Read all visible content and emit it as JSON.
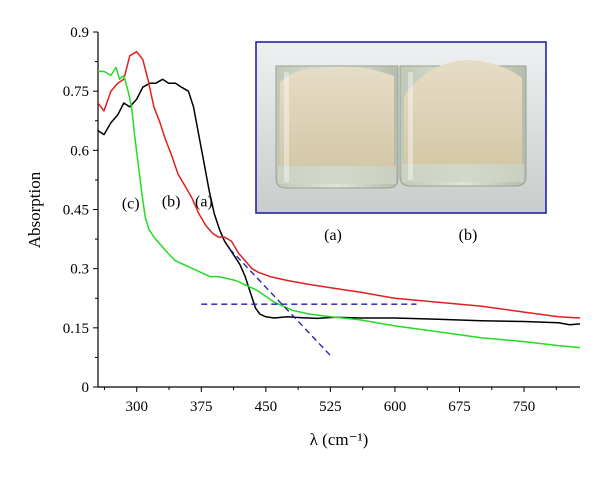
{
  "chart_data": {
    "type": "line",
    "xlabel": "λ (cm⁻¹)",
    "ylabel": "Absorption",
    "xlim": [
      255,
      815
    ],
    "ylim": [
      0,
      0.9
    ],
    "x_ticks": [
      300,
      375,
      450,
      525,
      600,
      675,
      750
    ],
    "y_ticks": [
      0,
      0.15,
      0.3,
      0.45,
      0.6,
      0.75,
      0.9
    ],
    "y_tick_labels": [
      "0",
      "0.15",
      "0.3",
      "0.45",
      "0.6",
      "0.75",
      "0.9"
    ],
    "grid": false,
    "series": [
      {
        "name": "(a)",
        "color": "#000000",
        "points": [
          [
            255,
            0.65
          ],
          [
            262,
            0.64
          ],
          [
            270,
            0.67
          ],
          [
            278,
            0.69
          ],
          [
            285,
            0.72
          ],
          [
            292,
            0.71
          ],
          [
            300,
            0.73
          ],
          [
            307,
            0.76
          ],
          [
            315,
            0.77
          ],
          [
            322,
            0.77
          ],
          [
            330,
            0.78
          ],
          [
            337,
            0.77
          ],
          [
            345,
            0.77
          ],
          [
            352,
            0.76
          ],
          [
            360,
            0.75
          ],
          [
            366,
            0.71
          ],
          [
            372,
            0.64
          ],
          [
            378,
            0.57
          ],
          [
            384,
            0.5
          ],
          [
            390,
            0.44
          ],
          [
            396,
            0.4
          ],
          [
            402,
            0.37
          ],
          [
            408,
            0.35
          ],
          [
            414,
            0.33
          ],
          [
            420,
            0.31
          ],
          [
            426,
            0.28
          ],
          [
            432,
            0.24
          ],
          [
            438,
            0.2
          ],
          [
            443,
            0.185
          ],
          [
            450,
            0.178
          ],
          [
            460,
            0.175
          ],
          [
            475,
            0.178
          ],
          [
            490,
            0.176
          ],
          [
            510,
            0.174
          ],
          [
            530,
            0.177
          ],
          [
            560,
            0.175
          ],
          [
            600,
            0.175
          ],
          [
            650,
            0.172
          ],
          [
            700,
            0.168
          ],
          [
            750,
            0.166
          ],
          [
            790,
            0.163
          ],
          [
            803,
            0.158
          ],
          [
            815,
            0.16
          ]
        ]
      },
      {
        "name": "(b)",
        "color": "#e02020",
        "points": [
          [
            255,
            0.72
          ],
          [
            262,
            0.7
          ],
          [
            270,
            0.75
          ],
          [
            278,
            0.77
          ],
          [
            285,
            0.78
          ],
          [
            292,
            0.84
          ],
          [
            300,
            0.85
          ],
          [
            307,
            0.83
          ],
          [
            313,
            0.78
          ],
          [
            320,
            0.71
          ],
          [
            327,
            0.67
          ],
          [
            333,
            0.63
          ],
          [
            340,
            0.59
          ],
          [
            348,
            0.54
          ],
          [
            356,
            0.51
          ],
          [
            364,
            0.48
          ],
          [
            372,
            0.44
          ],
          [
            380,
            0.41
          ],
          [
            388,
            0.39
          ],
          [
            395,
            0.38
          ],
          [
            402,
            0.38
          ],
          [
            410,
            0.37
          ],
          [
            418,
            0.34
          ],
          [
            426,
            0.32
          ],
          [
            434,
            0.3
          ],
          [
            442,
            0.29
          ],
          [
            455,
            0.28
          ],
          [
            475,
            0.27
          ],
          [
            500,
            0.26
          ],
          [
            530,
            0.25
          ],
          [
            560,
            0.24
          ],
          [
            600,
            0.225
          ],
          [
            650,
            0.215
          ],
          [
            700,
            0.205
          ],
          [
            750,
            0.19
          ],
          [
            790,
            0.178
          ],
          [
            815,
            0.175
          ]
        ]
      },
      {
        "name": "(c)",
        "color": "#22dd22",
        "points": [
          [
            255,
            0.8
          ],
          [
            262,
            0.8
          ],
          [
            270,
            0.79
          ],
          [
            276,
            0.81
          ],
          [
            280,
            0.78
          ],
          [
            285,
            0.79
          ],
          [
            290,
            0.75
          ],
          [
            294,
            0.71
          ],
          [
            298,
            0.63
          ],
          [
            302,
            0.56
          ],
          [
            306,
            0.49
          ],
          [
            310,
            0.43
          ],
          [
            314,
            0.4
          ],
          [
            320,
            0.38
          ],
          [
            328,
            0.36
          ],
          [
            336,
            0.34
          ],
          [
            345,
            0.32
          ],
          [
            355,
            0.31
          ],
          [
            365,
            0.3
          ],
          [
            375,
            0.29
          ],
          [
            385,
            0.28
          ],
          [
            395,
            0.28
          ],
          [
            405,
            0.275
          ],
          [
            415,
            0.27
          ],
          [
            425,
            0.26
          ],
          [
            440,
            0.245
          ],
          [
            460,
            0.215
          ],
          [
            480,
            0.195
          ],
          [
            500,
            0.185
          ],
          [
            525,
            0.178
          ],
          [
            560,
            0.17
          ],
          [
            600,
            0.155
          ],
          [
            650,
            0.14
          ],
          [
            700,
            0.125
          ],
          [
            750,
            0.115
          ],
          [
            790,
            0.105
          ],
          [
            815,
            0.1
          ]
        ]
      }
    ],
    "guide_lines": [
      {
        "name": "horizontal-dashed-guide",
        "x": [
          375,
          625
        ],
        "y": [
          0.21,
          0.21
        ]
      },
      {
        "name": "tangent-dashed-guide",
        "x": [
          408,
          525
        ],
        "y": [
          0.35,
          0.08
        ]
      }
    ],
    "annotations": [
      {
        "label": "(c)",
        "x": 293,
        "y": 0.465
      },
      {
        "label": "(b)",
        "x": 340,
        "y": 0.47
      },
      {
        "label": "(a)",
        "x": 378,
        "y": 0.47
      }
    ],
    "inset_photo": {
      "left_label": "(a)",
      "right_label": "(b)"
    }
  }
}
